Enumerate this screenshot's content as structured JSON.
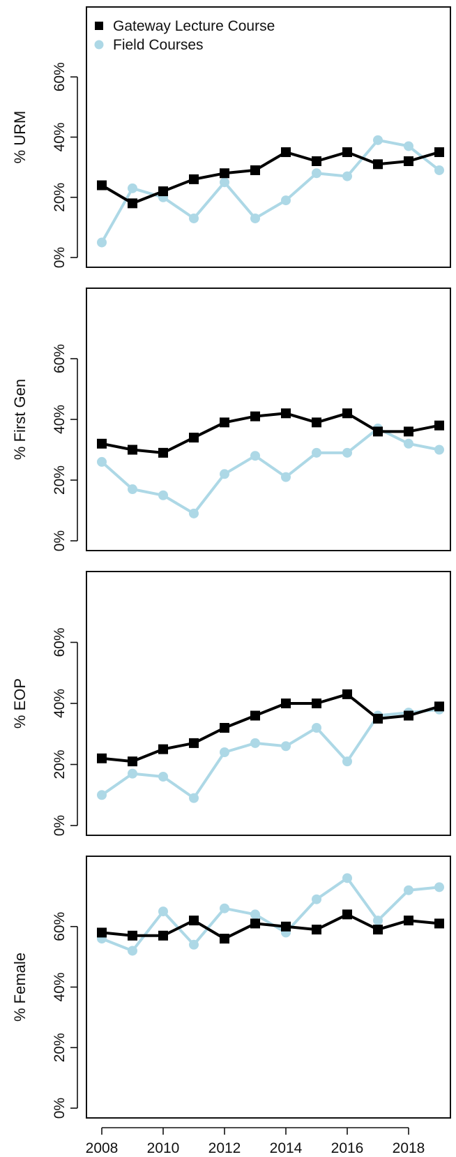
{
  "chart_data": {
    "type": "line",
    "x": [
      2008,
      2009,
      2010,
      2011,
      2012,
      2013,
      2014,
      2015,
      2016,
      2017,
      2018,
      2019
    ],
    "x_ticks": [
      2008,
      2010,
      2012,
      2014,
      2016,
      2018
    ],
    "x_tick_labels": [
      "2008",
      "2010",
      "2012",
      "2014",
      "2016",
      "2018"
    ],
    "xlim": [
      2008,
      2019
    ],
    "legend": {
      "placement": "top-left of first panel",
      "entries": [
        "Gateway Lecture Course",
        "Field Courses"
      ]
    },
    "colors": {
      "gateway": "#000000",
      "field": "#add8e6"
    },
    "panels": [
      {
        "ylabel": "% URM",
        "ylim": [
          0,
          80
        ],
        "y_ticks": [
          0,
          20,
          40,
          60
        ],
        "y_tick_labels": [
          "0%",
          "20%",
          "40%",
          "60%"
        ],
        "series": [
          {
            "name": "Gateway Lecture Course",
            "values": [
              24,
              18,
              22,
              26,
              28,
              29,
              35,
              32,
              35,
              31,
              32,
              35
            ]
          },
          {
            "name": "Field Courses",
            "values": [
              5,
              23,
              20,
              13,
              25,
              13,
              19,
              28,
              27,
              39,
              37,
              29
            ]
          }
        ]
      },
      {
        "ylabel": "% First Gen",
        "ylim": [
          0,
          80
        ],
        "y_ticks": [
          0,
          20,
          40,
          60
        ],
        "y_tick_labels": [
          "0%",
          "20%",
          "40%",
          "60%"
        ],
        "series": [
          {
            "name": "Gateway Lecture Course",
            "values": [
              32,
              30,
              29,
              34,
              39,
              41,
              42,
              39,
              42,
              36,
              36,
              38
            ]
          },
          {
            "name": "Field Courses",
            "values": [
              26,
              17,
              15,
              9,
              22,
              28,
              21,
              29,
              29,
              37,
              32,
              30
            ]
          }
        ]
      },
      {
        "ylabel": "% EOP",
        "ylim": [
          0,
          80
        ],
        "y_ticks": [
          0,
          20,
          40,
          60
        ],
        "y_tick_labels": [
          "0%",
          "20%",
          "40%",
          "60%"
        ],
        "series": [
          {
            "name": "Gateway Lecture Course",
            "values": [
              22,
              21,
              25,
              27,
              32,
              36,
              40,
              40,
              43,
              35,
              36,
              39
            ]
          },
          {
            "name": "Field Courses",
            "values": [
              10,
              17,
              16,
              9,
              24,
              27,
              26,
              32,
              21,
              36,
              37,
              38
            ]
          }
        ]
      },
      {
        "ylabel": "% Female",
        "ylim": [
          0,
          80
        ],
        "y_ticks": [
          0,
          20,
          40,
          60
        ],
        "y_tick_labels": [
          "0%",
          "20%",
          "40%",
          "60%"
        ],
        "series": [
          {
            "name": "Gateway Lecture Course",
            "values": [
              58,
              57,
              57,
              62,
              56,
              61,
              60,
              59,
              64,
              59,
              62,
              61
            ]
          },
          {
            "name": "Field Courses",
            "values": [
              56,
              52,
              65,
              54,
              66,
              64,
              58,
              69,
              76,
              62,
              72,
              73
            ]
          }
        ]
      }
    ]
  }
}
